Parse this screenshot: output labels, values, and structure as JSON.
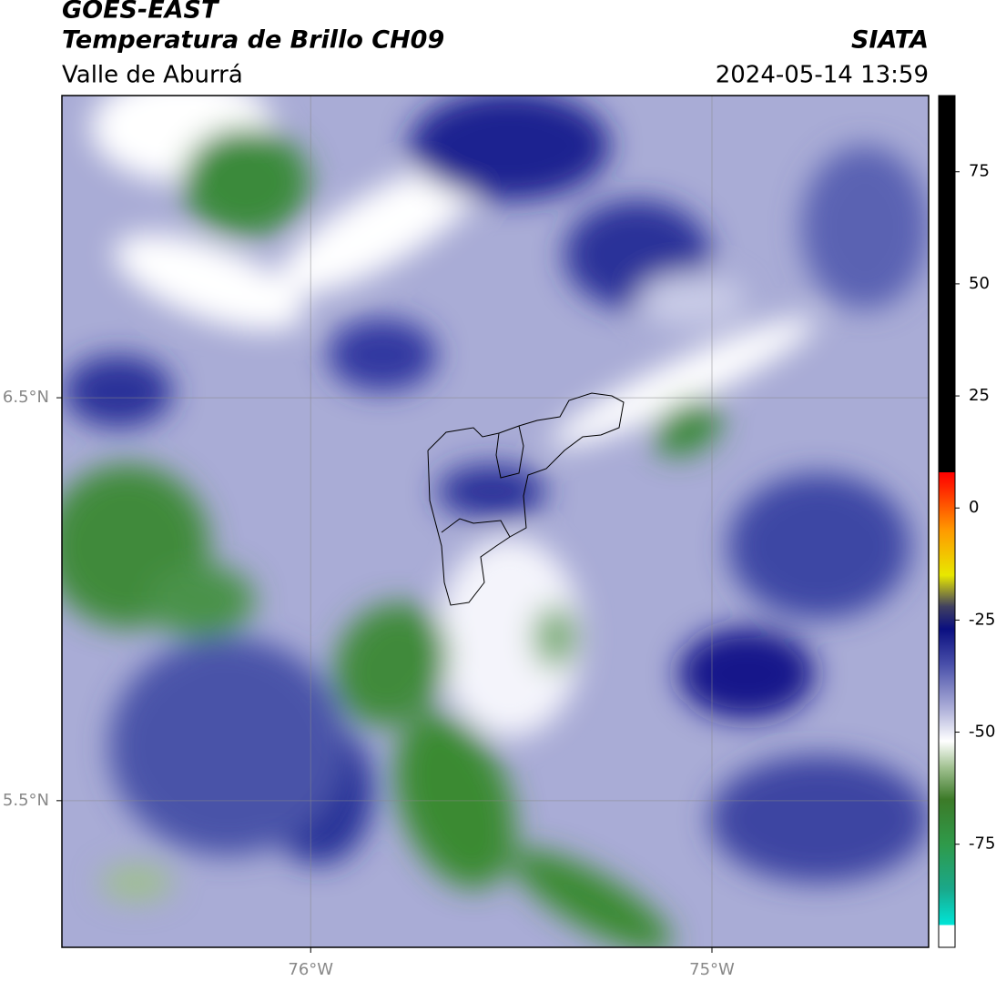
{
  "header": {
    "title": "GOES-EAST",
    "subtitle": "Temperatura de Brillo CH09",
    "region": "Valle de Aburrá",
    "source": "SIATA",
    "timestamp": "2024-05-14 13:59"
  },
  "map": {
    "xlim": [
      -76.62,
      -74.46
    ],
    "ylim": [
      5.136,
      7.25
    ],
    "xticks": [
      {
        "value": -76,
        "label": "76°W"
      },
      {
        "value": -75,
        "label": "75°W"
      }
    ],
    "yticks": [
      {
        "value": 6.5,
        "label": "6.5°N"
      },
      {
        "value": 5.5,
        "label": "5.5°N"
      }
    ],
    "grid": true
  },
  "colorbar": {
    "lim": [
      -98,
      92
    ],
    "ticks": [
      75,
      50,
      25,
      0,
      -25,
      -50,
      -75
    ],
    "stops": [
      {
        "value": -98,
        "color": "#ffffff"
      },
      {
        "value": -93,
        "color": "#ffffff"
      },
      {
        "value": -93,
        "color": "#00e5d8"
      },
      {
        "value": -85,
        "color": "#1aa88a"
      },
      {
        "value": -75,
        "color": "#2f9a4a"
      },
      {
        "value": -65,
        "color": "#3c7a28"
      },
      {
        "value": -58,
        "color": "#9fc08f"
      },
      {
        "value": -52,
        "color": "#ffffff"
      },
      {
        "value": -45,
        "color": "#b0b2da"
      },
      {
        "value": -35,
        "color": "#4a50aa"
      },
      {
        "value": -27,
        "color": "#0a0f80"
      },
      {
        "value": -22,
        "color": "#404060"
      },
      {
        "value": -15,
        "color": "#e8e800"
      },
      {
        "value": -5,
        "color": "#ff9a00"
      },
      {
        "value": 5,
        "color": "#ff2000"
      },
      {
        "value": 8,
        "color": "#ff0000"
      },
      {
        "value": 8,
        "color": "#000000"
      },
      {
        "value": 92,
        "color": "#000000"
      }
    ]
  }
}
